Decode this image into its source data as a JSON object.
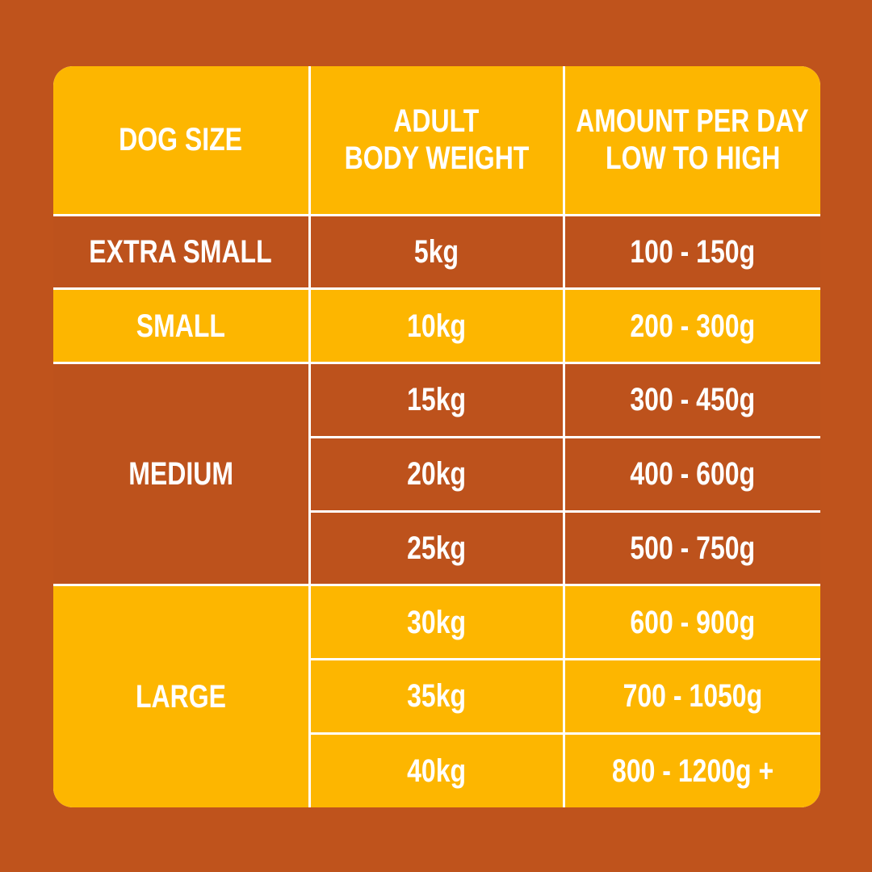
{
  "table": {
    "header": [
      [
        "DOG SIZE"
      ],
      [
        "ADULT",
        "BODY WEIGHT"
      ],
      [
        "AMOUNT PER DAY",
        "LOW TO HIGH"
      ]
    ],
    "groups": [
      {
        "size": "EXTRA SMALL",
        "rows": [
          [
            "5kg",
            "100 - 150g"
          ]
        ]
      },
      {
        "size": "SMALL",
        "rows": [
          [
            "10kg",
            "200 - 300g"
          ]
        ]
      },
      {
        "size": "MEDIUM",
        "rows": [
          [
            "15kg",
            "300 - 450g"
          ],
          [
            "20kg",
            "400 - 600g"
          ],
          [
            "25kg",
            "500 - 750g"
          ]
        ]
      },
      {
        "size": "LARGE",
        "rows": [
          [
            "30kg",
            "600 - 900g"
          ],
          [
            "35kg",
            "700 - 1050g"
          ],
          [
            "40kg",
            "800 - 1200g +"
          ]
        ]
      }
    ]
  }
}
